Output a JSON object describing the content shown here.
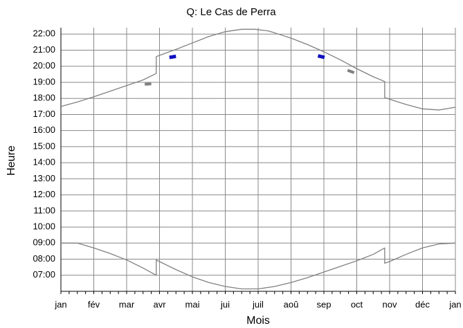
{
  "chart_data": {
    "type": "line",
    "title": "Q: Le Cas de Perra",
    "xlabel": "Mois",
    "ylabel": "Heure",
    "xlim": [
      0,
      12
    ],
    "xticks": [
      {
        "value": 0,
        "label": "jan"
      },
      {
        "value": 1,
        "label": "fév"
      },
      {
        "value": 2,
        "label": "mar"
      },
      {
        "value": 3,
        "label": "avr"
      },
      {
        "value": 4,
        "label": "mai"
      },
      {
        "value": 5,
        "label": "jui"
      },
      {
        "value": 6,
        "label": "juil"
      },
      {
        "value": 7,
        "label": "aoû"
      },
      {
        "value": 8,
        "label": "sep"
      },
      {
        "value": 9,
        "label": "oct"
      },
      {
        "value": 10,
        "label": "nov"
      },
      {
        "value": 11,
        "label": "déc"
      },
      {
        "value": 12,
        "label": "jan"
      }
    ],
    "ylim": [
      6,
      22.4
    ],
    "yticks": [
      {
        "value": 7,
        "label": "07:00"
      },
      {
        "value": 8,
        "label": "08:00"
      },
      {
        "value": 9,
        "label": "09:00"
      },
      {
        "value": 10,
        "label": "10:00"
      },
      {
        "value": 11,
        "label": "11:00"
      },
      {
        "value": 12,
        "label": "12:00"
      },
      {
        "value": 13,
        "label": "13:00"
      },
      {
        "value": 14,
        "label": "14:00"
      },
      {
        "value": 15,
        "label": "15:00"
      },
      {
        "value": 16,
        "label": "16:00"
      },
      {
        "value": 17,
        "label": "17:00"
      },
      {
        "value": 18,
        "label": "18:00"
      },
      {
        "value": 19,
        "label": "19:00"
      },
      {
        "value": 20,
        "label": "20:00"
      },
      {
        "value": 21,
        "label": "21:00"
      },
      {
        "value": 22,
        "label": "22:00"
      }
    ],
    "grid": true,
    "series": [
      {
        "color": "#808080",
        "width": 1.3,
        "x": [
          0,
          0.5,
          1,
          1.5,
          2,
          2.5,
          2.9,
          2.9,
          3,
          3.5,
          4,
          4.5,
          5,
          5.5,
          5.9,
          6.3,
          6.5,
          7,
          7.5,
          8,
          8.5,
          9,
          9.5,
          9.85,
          9.85,
          10,
          10.5,
          11,
          11.5,
          12
        ],
        "values": [
          17.5,
          17.78,
          18.1,
          18.45,
          18.8,
          19.15,
          19.55,
          20.6,
          20.68,
          21.05,
          21.45,
          21.85,
          22.15,
          22.3,
          22.3,
          22.2,
          22.08,
          21.75,
          21.35,
          20.9,
          20.4,
          19.85,
          19.35,
          19.05,
          18.05,
          17.95,
          17.62,
          17.35,
          17.28,
          17.45
        ]
      },
      {
        "color": "#808080",
        "width": 1.3,
        "x": [
          0,
          0.5,
          1,
          1.5,
          2,
          2.5,
          2.9,
          2.9,
          3,
          3.5,
          4,
          4.5,
          5,
          5.5,
          6,
          6.5,
          7,
          7.5,
          8,
          8.5,
          9,
          9.5,
          9.85,
          9.85,
          10,
          10.5,
          11,
          11.5,
          12
        ],
        "values": [
          9.0,
          9.0,
          8.7,
          8.35,
          7.95,
          7.45,
          7.0,
          7.95,
          7.85,
          7.35,
          6.9,
          6.55,
          6.3,
          6.15,
          6.15,
          6.3,
          6.55,
          6.85,
          7.2,
          7.55,
          7.9,
          8.3,
          8.7,
          7.75,
          7.85,
          8.3,
          8.7,
          8.95,
          9.0
        ]
      },
      {
        "color": "#808080",
        "width": 4,
        "x": [
          2.55,
          2.75
        ],
        "values": [
          18.88,
          18.9
        ]
      },
      {
        "color": "#1010c0",
        "width": 5,
        "x": [
          3.3,
          3.5
        ],
        "values": [
          20.55,
          20.62
        ]
      },
      {
        "color": "#1010c0",
        "width": 5,
        "x": [
          7.82,
          8.02
        ],
        "values": [
          20.65,
          20.55
        ]
      },
      {
        "color": "#808080",
        "width": 4,
        "x": [
          8.72,
          8.92
        ],
        "values": [
          19.75,
          19.6
        ]
      }
    ]
  }
}
